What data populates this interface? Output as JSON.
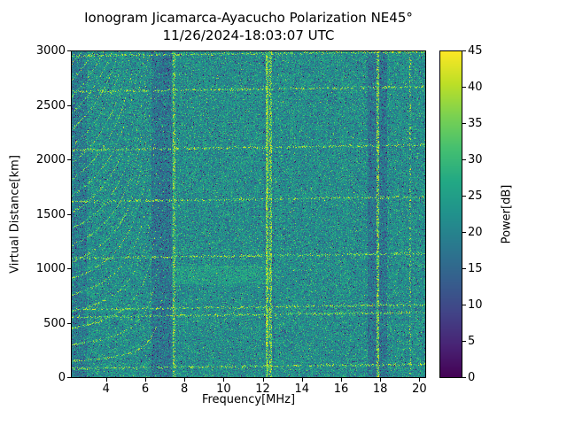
{
  "chart_data": {
    "type": "heatmap",
    "title": "Ionogram Jicamarca-Ayacucho Polarization NE45°",
    "subtitle": "11/26/2024-18:03:07 UTC",
    "xlabel": "Frequency[MHz]",
    "ylabel": "Virtual Distance[km]",
    "x_range_mhz": [
      2.2,
      20.3
    ],
    "y_range_km": [
      0,
      3000
    ],
    "x_ticks": [
      4,
      6,
      8,
      10,
      12,
      14,
      16,
      18,
      20
    ],
    "y_ticks": [
      0,
      500,
      1000,
      1500,
      2000,
      2500,
      3000
    ],
    "grid": false,
    "legend": "none",
    "colorbar": {
      "label": "Power[dB]",
      "range_db": [
        0,
        45
      ],
      "ticks": [
        0,
        5,
        10,
        15,
        20,
        25,
        30,
        35,
        40,
        45
      ],
      "colormap": "viridis",
      "position": "right"
    },
    "background_noise_db": {
      "mean": 22,
      "sd": 4.6
    },
    "echo_traces": [
      {
        "km_at_left": 85,
        "slope_km_per_mhz": 2.0
      },
      {
        "km_at_left": 555,
        "slope_km_per_mhz": 2.5
      },
      {
        "km_at_left": 625,
        "slope_km_per_mhz": 2.5
      },
      {
        "km_at_left": 1095,
        "slope_km_per_mhz": 2.5
      },
      {
        "km_at_left": 1615,
        "slope_km_per_mhz": 2.5
      },
      {
        "km_at_left": 2090,
        "slope_km_per_mhz": 2.5
      },
      {
        "km_at_left": 2625,
        "slope_km_per_mhz": 2.5
      },
      {
        "km_at_left": 2955,
        "slope_km_per_mhz": 2.0
      }
    ],
    "interference_lines_mhz": [
      {
        "freq": 7.45,
        "width": 0.05,
        "density": 0.6
      },
      {
        "freq": 12.2,
        "width": 0.07,
        "density": 0.85
      },
      {
        "freq": 12.38,
        "width": 0.05,
        "density": 0.7
      },
      {
        "freq": 17.85,
        "width": 0.06,
        "density": 0.7
      },
      {
        "freq": 19.5,
        "width": 0.04,
        "density": 0.3
      }
    ],
    "absorption_bands_mhz": [
      {
        "from": 2.2,
        "to": 3.0,
        "drop_db": 3.5
      },
      {
        "from": 6.3,
        "to": 7.35,
        "drop_db": 4.5
      },
      {
        "from": 17.35,
        "to": 18.35,
        "drop_db": 4.5
      },
      {
        "from": 11.95,
        "to": 12.6,
        "drop_db": 1.5
      }
    ],
    "hop_curves": {
      "critical_freq_mhz": 7.25,
      "base_km": 100,
      "scale_km": 260,
      "max_freq_mhz": 6.95
    },
    "enhanced_patch": {
      "freq_from": 7.4,
      "freq_to": 12.4,
      "km_from": 860,
      "km_to": 1030
    },
    "viridis_stops": [
      [
        0.0,
        68,
        1,
        84
      ],
      [
        0.1,
        72,
        36,
        117
      ],
      [
        0.2,
        65,
        68,
        135
      ],
      [
        0.3,
        53,
        95,
        141
      ],
      [
        0.4,
        42,
        120,
        142
      ],
      [
        0.5,
        33,
        145,
        140
      ],
      [
        0.6,
        34,
        168,
        132
      ],
      [
        0.7,
        68,
        191,
        112
      ],
      [
        0.8,
        122,
        209,
        81
      ],
      [
        0.9,
        189,
        223,
        38
      ],
      [
        1.0,
        253,
        231,
        37
      ]
    ],
    "seed": 42
  }
}
